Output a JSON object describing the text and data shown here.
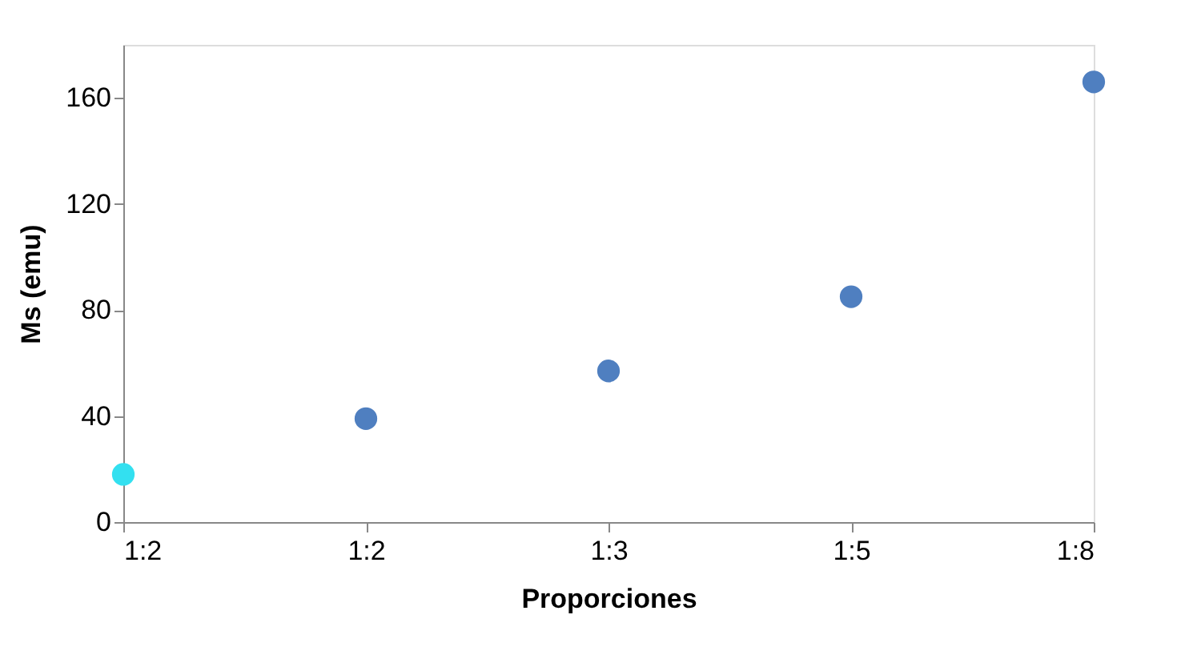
{
  "chart_data": {
    "type": "scatter",
    "xlabel": "Proporciones",
    "ylabel": "Ms (emu)",
    "categories": [
      "1:2",
      "1:2",
      "1:3",
      "1:5",
      "1:8"
    ],
    "values": [
      18,
      39,
      57,
      85,
      166
    ],
    "colors": [
      "#33e0f0",
      "#4f7fc0",
      "#4f7fc0",
      "#4f7fc0",
      "#4f7fc0"
    ],
    "ylim": [
      0,
      180
    ],
    "yticks": [
      0,
      40,
      80,
      120,
      160
    ],
    "grid": false,
    "marker": "circle"
  }
}
